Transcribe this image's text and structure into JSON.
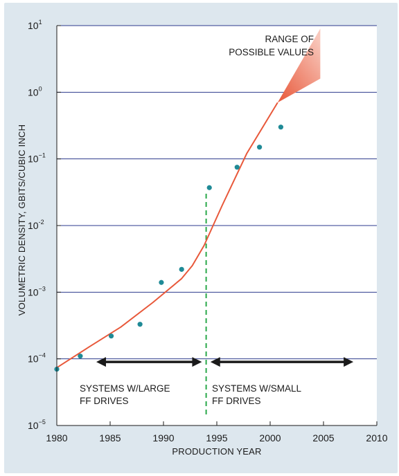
{
  "chart_data": {
    "type": "scatter",
    "title": "",
    "xlabel": "PRODUCTION YEAR",
    "ylabel": "VOLUMETRIC DENSITY, GBITS/CUBIC INCH",
    "xlim": [
      1980,
      2010
    ],
    "ylim": [
      1e-05,
      10
    ],
    "yscale": "log",
    "x_ticks": [
      1980,
      1985,
      1990,
      1995,
      2000,
      2005,
      2010
    ],
    "y_ticks": [
      {
        "value": 1e-05,
        "base": "10",
        "exp": "−5"
      },
      {
        "value": 0.0001,
        "base": "10",
        "exp": "−4"
      },
      {
        "value": 0.001,
        "base": "10",
        "exp": "−3"
      },
      {
        "value": 0.01,
        "base": "10",
        "exp": "-2"
      },
      {
        "value": 0.1,
        "base": "10",
        "exp": "−1"
      },
      {
        "value": 1,
        "base": "10",
        "exp": "0"
      },
      {
        "value": 10,
        "base": "10",
        "exp": "1"
      }
    ],
    "grid": "horizontal",
    "colors": {
      "points": "#1f8a96",
      "trend": "#e8583a",
      "divider": "#2aa84a",
      "gridline": "#2b3a8c",
      "arrows": "#1a1a1a"
    },
    "points": [
      {
        "x": 1980.0,
        "y": 7e-05
      },
      {
        "x": 1982.2,
        "y": 0.00011
      },
      {
        "x": 1985.1,
        "y": 0.00022
      },
      {
        "x": 1987.8,
        "y": 0.00033
      },
      {
        "x": 1989.8,
        "y": 0.0014
      },
      {
        "x": 1991.7,
        "y": 0.0022
      },
      {
        "x": 1994.3,
        "y": 0.037
      },
      {
        "x": 1996.9,
        "y": 0.075
      },
      {
        "x": 1999.0,
        "y": 0.15
      },
      {
        "x": 2001.0,
        "y": 0.3
      }
    ],
    "trend_line": [
      {
        "x": 1979.9,
        "y": 7.2e-05
      },
      {
        "x": 1983,
        "y": 0.00015
      },
      {
        "x": 1986,
        "y": 0.0003
      },
      {
        "x": 1989,
        "y": 0.0007
      },
      {
        "x": 1991.7,
        "y": 0.0016
      },
      {
        "x": 1992.7,
        "y": 0.0025
      },
      {
        "x": 1993.8,
        "y": 0.005
      },
      {
        "x": 1995.5,
        "y": 0.02
      },
      {
        "x": 1997.8,
        "y": 0.12
      },
      {
        "x": 2000.7,
        "y": 0.7
      }
    ],
    "range_fan": {
      "from": {
        "x": 2000.7,
        "y": 0.7
      },
      "upper": {
        "x": 2004.7,
        "y": 9
      },
      "lower": {
        "x": 2004.7,
        "y": 1.6
      }
    },
    "divider_x": 1994,
    "divider_range": [
      1.4e-05,
      0.03
    ],
    "eras": [
      {
        "label_lines": [
          "SYSTEMS W/LARGE",
          "FF DRIVES"
        ],
        "x_start": 1983.7,
        "x_end": 1993.6,
        "y": 9e-05
      },
      {
        "label_lines": [
          "SYSTEMS W/SMALL",
          "FF DRIVES"
        ],
        "x_start": 1994.4,
        "x_end": 2007.8,
        "y": 9e-05
      }
    ],
    "annotations": [
      {
        "text_lines": [
          "RANGE OF",
          "POSSIBLE VALUES"
        ]
      }
    ]
  }
}
